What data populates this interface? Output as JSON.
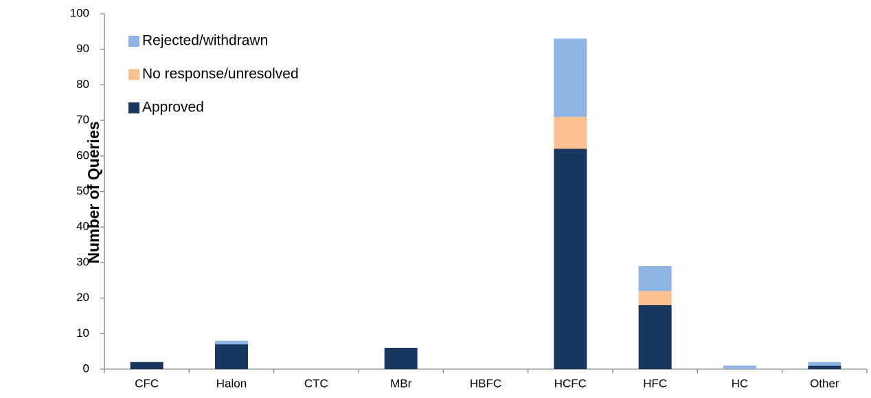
{
  "chart_data": {
    "type": "stacked_bar",
    "y_label": "Number of Queries",
    "categories": [
      "CFC",
      "Halon",
      "CTC",
      "MBr",
      "HBFC",
      "HCFC",
      "HFC",
      "HC",
      "Other"
    ],
    "series": [
      {
        "name": "Approved",
        "color": "#17375e",
        "values": [
          2,
          7,
          0,
          6,
          0,
          62,
          18,
          0,
          1
        ]
      },
      {
        "name": "No response/unresolved",
        "color": "#fac090",
        "values": [
          0,
          0,
          0,
          0,
          0,
          9,
          4,
          0,
          0
        ]
      },
      {
        "name": "Rejected/withdrawn",
        "color": "#8eb4e3",
        "values": [
          0,
          1,
          0,
          0,
          0,
          22,
          7,
          1,
          1
        ]
      }
    ],
    "ylim": [
      0,
      100
    ],
    "yticks": [
      0,
      10,
      20,
      30,
      40,
      50,
      60,
      70,
      80,
      90,
      100
    ],
    "legend": "top-left",
    "grid": false
  }
}
